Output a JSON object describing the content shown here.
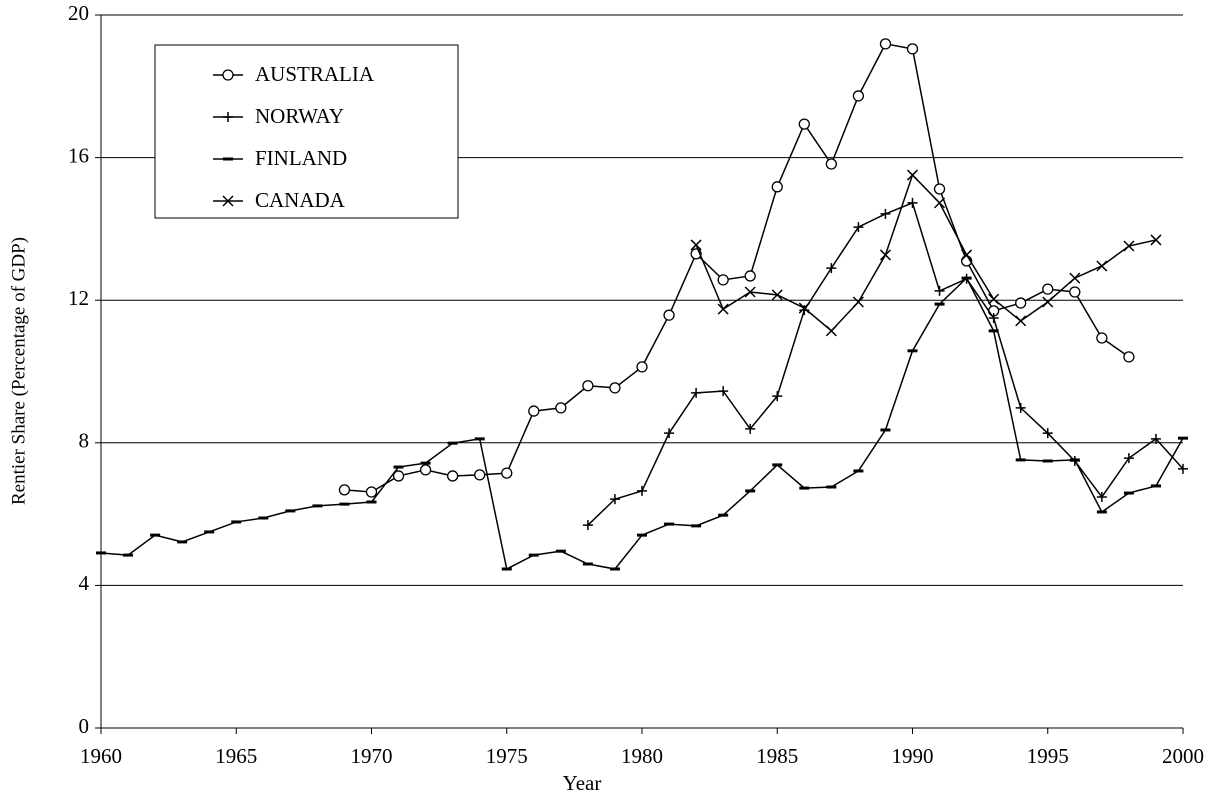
{
  "chart_data": {
    "type": "line",
    "xlabel": "Year",
    "ylabel": "Rentier Share (Percentage of GDP)",
    "x": [
      1960,
      1961,
      1962,
      1963,
      1964,
      1965,
      1966,
      1967,
      1968,
      1969,
      1970,
      1971,
      1972,
      1973,
      1974,
      1975,
      1976,
      1977,
      1978,
      1979,
      1980,
      1981,
      1982,
      1983,
      1984,
      1985,
      1986,
      1987,
      1988,
      1989,
      1990,
      1991,
      1992,
      1993,
      1994,
      1995,
      1996,
      1997,
      1998,
      1999,
      2000
    ],
    "xlim": [
      1960,
      2000
    ],
    "xticks": [
      1960,
      1965,
      1970,
      1975,
      1980,
      1985,
      1990,
      1995,
      2000
    ],
    "ylim": [
      0,
      20
    ],
    "yticks": [
      0,
      4,
      8,
      12,
      16,
      20
    ],
    "grid": true,
    "legend": "upper left",
    "series": [
      {
        "name": "AUSTRALIA",
        "color": "#000000",
        "marker": "circle",
        "values": [
          null,
          null,
          null,
          null,
          null,
          null,
          null,
          null,
          null,
          6.68,
          6.62,
          7.07,
          7.24,
          7.07,
          7.1,
          7.15,
          8.89,
          8.98,
          9.6,
          9.54,
          10.13,
          11.58,
          13.3,
          12.57,
          12.68,
          15.18,
          16.94,
          15.82,
          17.73,
          19.19,
          19.05,
          15.12,
          13.1,
          11.7,
          11.92,
          12.31,
          12.23,
          10.94,
          10.41,
          null,
          null
        ]
      },
      {
        "name": "NORWAY",
        "color": "#000000",
        "marker": "plus",
        "values": [
          null,
          null,
          null,
          null,
          null,
          null,
          null,
          null,
          null,
          null,
          null,
          null,
          null,
          null,
          null,
          null,
          null,
          null,
          5.69,
          6.42,
          6.65,
          8.27,
          9.4,
          9.45,
          8.39,
          9.31,
          11.72,
          12.9,
          14.05,
          14.42,
          14.73,
          12.26,
          12.6,
          11.5,
          8.98,
          8.27,
          7.49,
          6.48,
          7.57,
          8.11,
          7.27
        ]
      },
      {
        "name": "FINLAND",
        "color": "#000000",
        "marker": "dash",
        "values": [
          4.91,
          4.85,
          5.41,
          5.22,
          5.5,
          5.78,
          5.89,
          6.09,
          6.23,
          6.28,
          6.34,
          7.32,
          7.43,
          7.99,
          8.11,
          4.46,
          4.85,
          4.96,
          4.6,
          4.46,
          5.41,
          5.72,
          5.67,
          5.97,
          6.65,
          7.38,
          6.73,
          6.76,
          7.21,
          8.36,
          10.58,
          11.89,
          12.62,
          11.14,
          7.52,
          7.49,
          7.52,
          6.06,
          6.59,
          6.79,
          8.13
        ]
      },
      {
        "name": "CANADA",
        "color": "#000000",
        "marker": "x",
        "values": [
          null,
          null,
          null,
          null,
          null,
          null,
          null,
          null,
          null,
          null,
          null,
          null,
          null,
          null,
          null,
          null,
          null,
          null,
          null,
          null,
          null,
          null,
          13.55,
          11.75,
          12.23,
          12.15,
          11.78,
          11.14,
          11.95,
          13.27,
          15.51,
          14.73,
          13.27,
          12.03,
          11.42,
          11.95,
          12.62,
          12.96,
          13.52,
          13.69,
          null
        ]
      }
    ]
  }
}
